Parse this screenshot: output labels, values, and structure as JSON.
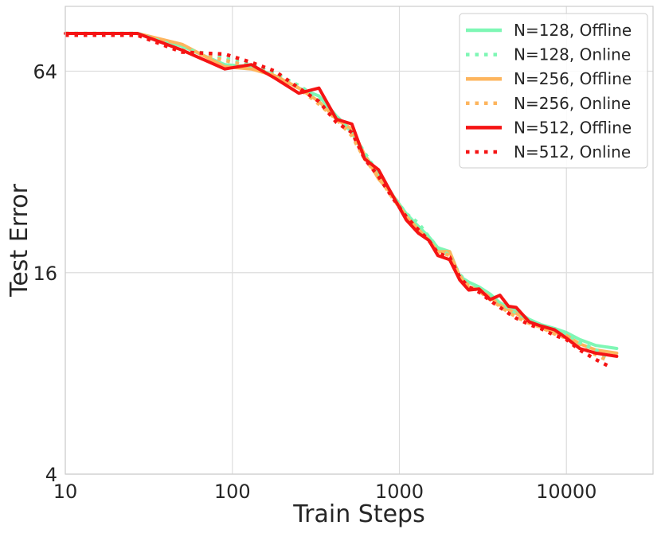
{
  "chart_data": {
    "type": "line",
    "title": "",
    "xlabel": "Train Steps",
    "ylabel": "Test Error",
    "x_scale": "log",
    "y_scale": "log2",
    "xlim": [
      10,
      33000
    ],
    "ylim": [
      4,
      100
    ],
    "xticks": [
      10,
      100,
      1000,
      10000
    ],
    "xtick_labels": [
      "10",
      "100",
      "1000",
      "10000"
    ],
    "yticks": [
      4,
      16,
      64
    ],
    "ytick_labels": [
      "4",
      "16",
      "64"
    ],
    "grid": true,
    "legend_position": "top-right",
    "series": [
      {
        "name": "N=128, Offline",
        "color": "#7ef7b5",
        "style": "solid",
        "x": [
          10,
          27,
          50,
          90,
          130,
          180,
          250,
          330,
          420,
          520,
          620,
          750,
          900,
          1100,
          1300,
          1500,
          1700,
          2000,
          2300,
          2600,
          3000,
          3500,
          4000,
          4500,
          5000,
          6000,
          7000,
          8500,
          10000,
          12000,
          15000,
          20000
        ],
        "y": [
          83,
          83,
          76,
          67,
          66,
          62,
          57,
          54,
          47,
          42,
          36,
          31.5,
          27.5,
          24,
          22,
          20.5,
          19,
          18.5,
          15.6,
          15,
          14.5,
          13.8,
          13,
          12.6,
          12.3,
          11.6,
          11.2,
          10.9,
          10.6,
          10.1,
          9.7,
          9.5
        ]
      },
      {
        "name": "N=128, Online",
        "color": "#7ef7b5",
        "style": "dotted",
        "x": [
          10,
          27,
          50,
          90,
          130,
          180,
          250,
          330,
          420,
          520,
          620,
          750,
          900,
          1100,
          1300,
          1500,
          1700,
          2000,
          2300,
          2600,
          3000,
          3500,
          4000,
          4500,
          5000,
          6000,
          7000,
          8500,
          10000,
          12000,
          15000,
          18000
        ],
        "y": [
          83,
          83,
          75,
          70,
          67,
          63,
          58,
          53,
          47,
          42,
          36.5,
          31.5,
          27.5,
          24,
          22.5,
          20.5,
          19,
          18,
          15.8,
          14.8,
          14.2,
          13.5,
          12.9,
          12.4,
          12,
          11.5,
          11.2,
          10.8,
          10.5,
          9.9,
          9.4,
          8.9
        ]
      },
      {
        "name": "N=256, Offline",
        "color": "#fdb55e",
        "style": "solid",
        "x": [
          10,
          27,
          50,
          90,
          130,
          180,
          250,
          330,
          420,
          520,
          620,
          750,
          900,
          1100,
          1300,
          1500,
          1700,
          2000,
          2300,
          2600,
          3000,
          3500,
          4000,
          4500,
          5000,
          6000,
          7000,
          8500,
          10000,
          12000,
          15000,
          20000
        ],
        "y": [
          83,
          83,
          77,
          66,
          65,
          62,
          57,
          52,
          46,
          43,
          36,
          30.5,
          27.5,
          23.5,
          21.5,
          20,
          18.5,
          18.5,
          15.5,
          14.5,
          14.3,
          13.5,
          12.8,
          12.4,
          12.1,
          11.4,
          11,
          10.6,
          10.4,
          9.8,
          9.4,
          9.2
        ]
      },
      {
        "name": "N=256, Online",
        "color": "#fdb55e",
        "style": "dotted",
        "x": [
          10,
          27,
          50,
          90,
          130,
          180,
          250,
          330,
          420,
          520,
          620,
          750,
          900,
          1100,
          1300,
          1500,
          1700,
          2000,
          2300,
          2600,
          3000,
          3500,
          4000,
          4500,
          5000,
          6000,
          7000,
          8500,
          10000,
          12000,
          15000,
          18000
        ],
        "y": [
          83,
          82,
          74,
          69,
          66,
          62,
          57,
          51,
          46,
          41,
          35,
          31,
          27,
          23.5,
          21.5,
          20,
          18.5,
          18,
          15.6,
          14.6,
          14.1,
          13.3,
          12.7,
          12.2,
          11.8,
          11.3,
          11,
          10.5,
          10.2,
          9.6,
          9.1,
          8.7
        ]
      },
      {
        "name": "N=512, Offline",
        "color": "#f51414",
        "style": "solid",
        "x": [
          10,
          27,
          50,
          90,
          130,
          180,
          250,
          330,
          420,
          520,
          620,
          750,
          900,
          1100,
          1300,
          1500,
          1700,
          2000,
          2300,
          2600,
          3000,
          3500,
          4000,
          4500,
          5000,
          6000,
          7000,
          8500,
          10000,
          12000,
          15000,
          20000
        ],
        "y": [
          83,
          83,
          74,
          65,
          67,
          61,
          55,
          57,
          46,
          44.5,
          35,
          32.5,
          27.5,
          23,
          21,
          20,
          18,
          17.5,
          15.2,
          14.2,
          14.3,
          13.3,
          13.7,
          12.7,
          12.6,
          11.4,
          11.1,
          10.8,
          10.2,
          9.5,
          9.2,
          9.0
        ]
      },
      {
        "name": "N=512, Online",
        "color": "#f51414",
        "style": "dotted",
        "x": [
          10,
          27,
          50,
          90,
          130,
          180,
          250,
          330,
          420,
          520,
          620,
          750,
          900,
          1100,
          1300,
          1500,
          1700,
          2000,
          2300,
          2600,
          3000,
          3500,
          4000,
          4500,
          5000,
          6000,
          7000,
          8500,
          10000,
          12000,
          15000,
          18000
        ],
        "y": [
          82,
          82,
          73,
          72,
          68,
          64,
          57,
          52,
          45,
          42,
          35,
          31,
          27,
          23.5,
          21.5,
          20,
          18.3,
          17.8,
          15.5,
          14.5,
          14,
          13.2,
          12.6,
          12.1,
          11.7,
          11.2,
          10.9,
          10.4,
          10.1,
          9.4,
          8.8,
          8.4
        ]
      }
    ]
  }
}
